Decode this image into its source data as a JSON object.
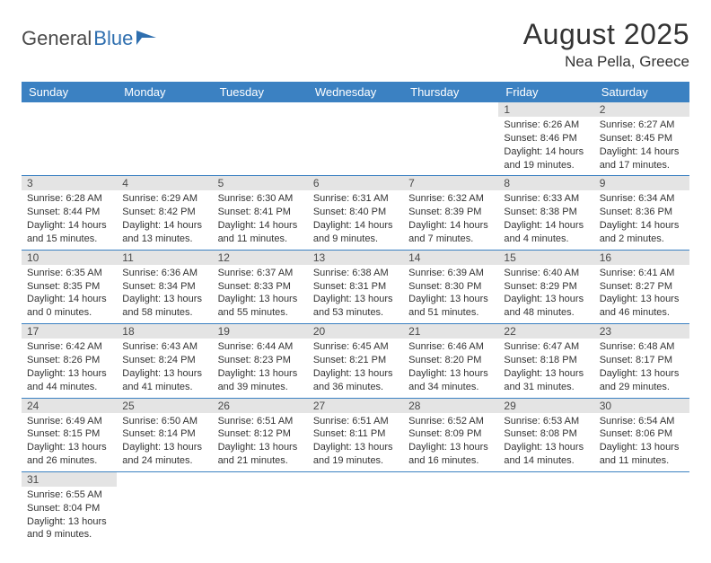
{
  "branding": {
    "logo_word1": "General",
    "logo_word2": "Blue",
    "logo_color_gray": "#5a5a5a",
    "logo_color_blue": "#2f6faf",
    "flag_color": "#2f6faf"
  },
  "header": {
    "month_title": "August 2025",
    "location": "Nea Pella, Greece",
    "title_color": "#333333"
  },
  "calendar": {
    "header_bg": "#3b81c2",
    "header_text_color": "#ffffff",
    "daynum_bg": "#e4e4e4",
    "row_border_color": "#3b81c2",
    "text_color": "#333333",
    "day_headers": [
      "Sunday",
      "Monday",
      "Tuesday",
      "Wednesday",
      "Thursday",
      "Friday",
      "Saturday"
    ],
    "weeks": [
      [
        null,
        null,
        null,
        null,
        null,
        {
          "n": "1",
          "sunrise": "Sunrise: 6:26 AM",
          "sunset": "Sunset: 8:46 PM",
          "daylight": "Daylight: 14 hours and 19 minutes."
        },
        {
          "n": "2",
          "sunrise": "Sunrise: 6:27 AM",
          "sunset": "Sunset: 8:45 PM",
          "daylight": "Daylight: 14 hours and 17 minutes."
        }
      ],
      [
        {
          "n": "3",
          "sunrise": "Sunrise: 6:28 AM",
          "sunset": "Sunset: 8:44 PM",
          "daylight": "Daylight: 14 hours and 15 minutes."
        },
        {
          "n": "4",
          "sunrise": "Sunrise: 6:29 AM",
          "sunset": "Sunset: 8:42 PM",
          "daylight": "Daylight: 14 hours and 13 minutes."
        },
        {
          "n": "5",
          "sunrise": "Sunrise: 6:30 AM",
          "sunset": "Sunset: 8:41 PM",
          "daylight": "Daylight: 14 hours and 11 minutes."
        },
        {
          "n": "6",
          "sunrise": "Sunrise: 6:31 AM",
          "sunset": "Sunset: 8:40 PM",
          "daylight": "Daylight: 14 hours and 9 minutes."
        },
        {
          "n": "7",
          "sunrise": "Sunrise: 6:32 AM",
          "sunset": "Sunset: 8:39 PM",
          "daylight": "Daylight: 14 hours and 7 minutes."
        },
        {
          "n": "8",
          "sunrise": "Sunrise: 6:33 AM",
          "sunset": "Sunset: 8:38 PM",
          "daylight": "Daylight: 14 hours and 4 minutes."
        },
        {
          "n": "9",
          "sunrise": "Sunrise: 6:34 AM",
          "sunset": "Sunset: 8:36 PM",
          "daylight": "Daylight: 14 hours and 2 minutes."
        }
      ],
      [
        {
          "n": "10",
          "sunrise": "Sunrise: 6:35 AM",
          "sunset": "Sunset: 8:35 PM",
          "daylight": "Daylight: 14 hours and 0 minutes."
        },
        {
          "n": "11",
          "sunrise": "Sunrise: 6:36 AM",
          "sunset": "Sunset: 8:34 PM",
          "daylight": "Daylight: 13 hours and 58 minutes."
        },
        {
          "n": "12",
          "sunrise": "Sunrise: 6:37 AM",
          "sunset": "Sunset: 8:33 PM",
          "daylight": "Daylight: 13 hours and 55 minutes."
        },
        {
          "n": "13",
          "sunrise": "Sunrise: 6:38 AM",
          "sunset": "Sunset: 8:31 PM",
          "daylight": "Daylight: 13 hours and 53 minutes."
        },
        {
          "n": "14",
          "sunrise": "Sunrise: 6:39 AM",
          "sunset": "Sunset: 8:30 PM",
          "daylight": "Daylight: 13 hours and 51 minutes."
        },
        {
          "n": "15",
          "sunrise": "Sunrise: 6:40 AM",
          "sunset": "Sunset: 8:29 PM",
          "daylight": "Daylight: 13 hours and 48 minutes."
        },
        {
          "n": "16",
          "sunrise": "Sunrise: 6:41 AM",
          "sunset": "Sunset: 8:27 PM",
          "daylight": "Daylight: 13 hours and 46 minutes."
        }
      ],
      [
        {
          "n": "17",
          "sunrise": "Sunrise: 6:42 AM",
          "sunset": "Sunset: 8:26 PM",
          "daylight": "Daylight: 13 hours and 44 minutes."
        },
        {
          "n": "18",
          "sunrise": "Sunrise: 6:43 AM",
          "sunset": "Sunset: 8:24 PM",
          "daylight": "Daylight: 13 hours and 41 minutes."
        },
        {
          "n": "19",
          "sunrise": "Sunrise: 6:44 AM",
          "sunset": "Sunset: 8:23 PM",
          "daylight": "Daylight: 13 hours and 39 minutes."
        },
        {
          "n": "20",
          "sunrise": "Sunrise: 6:45 AM",
          "sunset": "Sunset: 8:21 PM",
          "daylight": "Daylight: 13 hours and 36 minutes."
        },
        {
          "n": "21",
          "sunrise": "Sunrise: 6:46 AM",
          "sunset": "Sunset: 8:20 PM",
          "daylight": "Daylight: 13 hours and 34 minutes."
        },
        {
          "n": "22",
          "sunrise": "Sunrise: 6:47 AM",
          "sunset": "Sunset: 8:18 PM",
          "daylight": "Daylight: 13 hours and 31 minutes."
        },
        {
          "n": "23",
          "sunrise": "Sunrise: 6:48 AM",
          "sunset": "Sunset: 8:17 PM",
          "daylight": "Daylight: 13 hours and 29 minutes."
        }
      ],
      [
        {
          "n": "24",
          "sunrise": "Sunrise: 6:49 AM",
          "sunset": "Sunset: 8:15 PM",
          "daylight": "Daylight: 13 hours and 26 minutes."
        },
        {
          "n": "25",
          "sunrise": "Sunrise: 6:50 AM",
          "sunset": "Sunset: 8:14 PM",
          "daylight": "Daylight: 13 hours and 24 minutes."
        },
        {
          "n": "26",
          "sunrise": "Sunrise: 6:51 AM",
          "sunset": "Sunset: 8:12 PM",
          "daylight": "Daylight: 13 hours and 21 minutes."
        },
        {
          "n": "27",
          "sunrise": "Sunrise: 6:51 AM",
          "sunset": "Sunset: 8:11 PM",
          "daylight": "Daylight: 13 hours and 19 minutes."
        },
        {
          "n": "28",
          "sunrise": "Sunrise: 6:52 AM",
          "sunset": "Sunset: 8:09 PM",
          "daylight": "Daylight: 13 hours and 16 minutes."
        },
        {
          "n": "29",
          "sunrise": "Sunrise: 6:53 AM",
          "sunset": "Sunset: 8:08 PM",
          "daylight": "Daylight: 13 hours and 14 minutes."
        },
        {
          "n": "30",
          "sunrise": "Sunrise: 6:54 AM",
          "sunset": "Sunset: 8:06 PM",
          "daylight": "Daylight: 13 hours and 11 minutes."
        }
      ],
      [
        {
          "n": "31",
          "sunrise": "Sunrise: 6:55 AM",
          "sunset": "Sunset: 8:04 PM",
          "daylight": "Daylight: 13 hours and 9 minutes."
        },
        null,
        null,
        null,
        null,
        null,
        null
      ]
    ]
  }
}
